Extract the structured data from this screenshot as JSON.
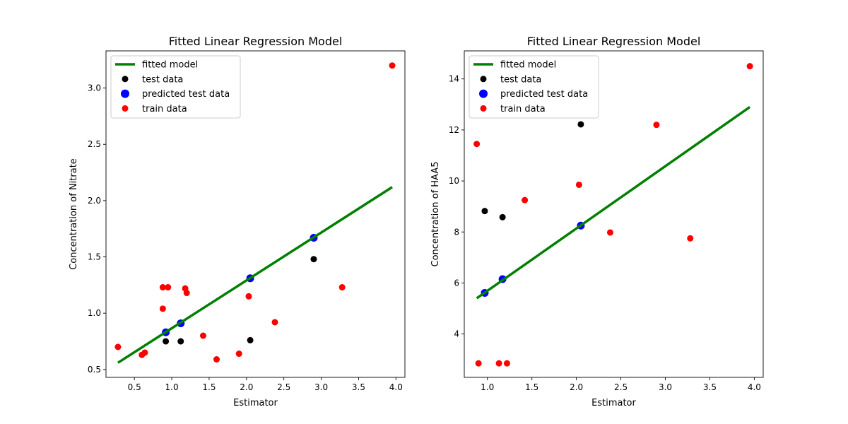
{
  "chart_data": [
    {
      "type": "scatter",
      "title": "Fitted Linear Regression Model",
      "xlabel": "Estimator",
      "ylabel": "Concentration of Nitrate",
      "xlim": [
        0.12,
        4.12
      ],
      "ylim": [
        0.43,
        3.33
      ],
      "xticks": [
        "0.5",
        "1.0",
        "1.5",
        "2.0",
        "2.5",
        "3.0",
        "3.5",
        "4.0"
      ],
      "yticks": [
        "0.5",
        "1.0",
        "1.5",
        "2.0",
        "2.5",
        "3.0"
      ],
      "legend_position": "upper-left",
      "grid": false,
      "series": [
        {
          "name": "fitted model",
          "kind": "line",
          "color": "#008000",
          "x": [
            0.28,
            3.95
          ],
          "y": [
            0.56,
            2.12
          ]
        },
        {
          "name": "test data",
          "kind": "scatter",
          "color": "#000000",
          "x": [
            0.92,
            1.12,
            2.05,
            2.9
          ],
          "y": [
            0.75,
            0.75,
            0.76,
            1.48
          ]
        },
        {
          "name": "predicted test data",
          "kind": "scatter",
          "color": "#0000ff",
          "x": [
            0.92,
            1.12,
            2.05,
            2.9
          ],
          "y": [
            0.83,
            0.91,
            1.31,
            1.67
          ]
        },
        {
          "name": "train data",
          "kind": "scatter",
          "color": "#ff0000",
          "x": [
            0.28,
            0.6,
            0.64,
            0.88,
            0.88,
            0.95,
            1.18,
            1.2,
            1.42,
            1.6,
            1.9,
            2.03,
            2.38,
            3.28,
            3.95
          ],
          "y": [
            0.7,
            0.63,
            0.65,
            1.23,
            1.04,
            1.23,
            1.22,
            1.18,
            0.8,
            0.59,
            0.64,
            1.15,
            0.92,
            1.23,
            3.2
          ]
        }
      ]
    },
    {
      "type": "scatter",
      "title": "Fitted Linear Regression Model",
      "xlabel": "Estimator",
      "ylabel": "Concentration of HAA5",
      "xlim": [
        0.74,
        4.1
      ],
      "ylim": [
        2.3,
        15.1
      ],
      "xticks": [
        "1.0",
        "1.5",
        "2.0",
        "2.5",
        "3.0",
        "3.5",
        "4.0"
      ],
      "yticks": [
        "4",
        "6",
        "8",
        "10",
        "12",
        "14"
      ],
      "legend_position": "upper-left",
      "grid": false,
      "series": [
        {
          "name": "fitted model",
          "kind": "line",
          "color": "#008000",
          "x": [
            0.88,
            3.95
          ],
          "y": [
            5.4,
            12.9
          ]
        },
        {
          "name": "test data",
          "kind": "scatter",
          "color": "#000000",
          "x": [
            0.97,
            1.17,
            2.05
          ],
          "y": [
            8.82,
            8.58,
            12.22
          ]
        },
        {
          "name": "predicted test data",
          "kind": "scatter",
          "color": "#0000ff",
          "x": [
            0.97,
            1.17,
            2.05
          ],
          "y": [
            5.61,
            6.15,
            8.25
          ]
        },
        {
          "name": "train data",
          "kind": "scatter",
          "color": "#ff0000",
          "x": [
            0.88,
            0.9,
            1.13,
            1.22,
            1.42,
            2.03,
            2.38,
            2.9,
            3.28,
            3.95
          ],
          "y": [
            11.45,
            2.85,
            2.85,
            2.85,
            9.25,
            9.85,
            7.98,
            12.2,
            7.75,
            14.5
          ]
        }
      ]
    }
  ]
}
